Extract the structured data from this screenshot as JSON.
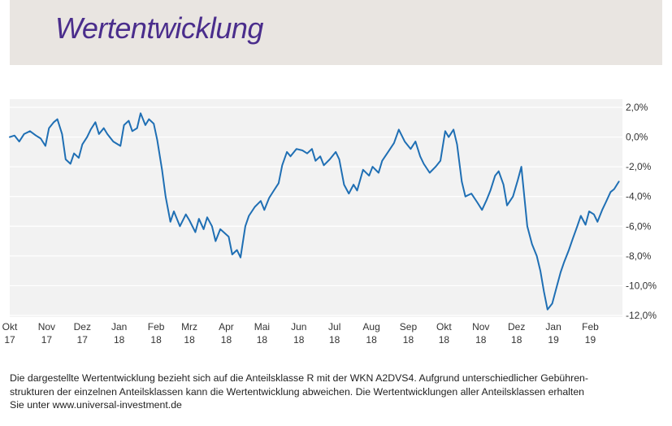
{
  "header": {
    "title": "Wertentwicklung"
  },
  "footnote": {
    "line1": "Die dargestellte Wertentwicklung bezieht sich auf die Anteilsklasse R mit der WKN A2DVS4. Aufgrund unterschiedlicher Gebühren-",
    "line2": "strukturen der einzelnen Anteilsklassen kann die Wertentwicklung abweichen. Die Wertentwicklungen aller Anteilsklassen erhalten",
    "line3": "Sie unter www.universal-investment.de"
  },
  "chart_data": {
    "type": "line",
    "title": "",
    "xlabel": "",
    "ylabel": "",
    "ylim": [
      -12,
      2
    ],
    "y_ticks": [
      "2,0%",
      "0,0%",
      "-2,0%",
      "-4,0%",
      "-6,0%",
      "-8,0%",
      "-10,0%",
      "-12,0%"
    ],
    "y_tick_values": [
      2,
      0,
      -2,
      -4,
      -6,
      -8,
      -10,
      -12
    ],
    "x_ticks": [
      {
        "month": "Okt",
        "year": "17"
      },
      {
        "month": "Nov",
        "year": "17"
      },
      {
        "month": "Dez",
        "year": "17"
      },
      {
        "month": "Jan",
        "year": "18"
      },
      {
        "month": "Feb",
        "year": "18"
      },
      {
        "month": "Mrz",
        "year": "18"
      },
      {
        "month": "Apr",
        "year": "18"
      },
      {
        "month": "Mai",
        "year": "18"
      },
      {
        "month": "Jun",
        "year": "18"
      },
      {
        "month": "Jul",
        "year": "18"
      },
      {
        "month": "Aug",
        "year": "18"
      },
      {
        "month": "Sep",
        "year": "18"
      },
      {
        "month": "Okt",
        "year": "18"
      },
      {
        "month": "Nov",
        "year": "18"
      },
      {
        "month": "Dez",
        "year": "18"
      },
      {
        "month": "Jan",
        "year": "19"
      },
      {
        "month": "Feb",
        "year": "19"
      }
    ],
    "x_range": [
      "2017-10-01",
      "2019-02-28"
    ],
    "grid": true,
    "colors": {
      "line": "#1f6fb4",
      "plot_background": "#f2f2f2",
      "gridline": "#ffffff",
      "title": "#4a2d8c",
      "title_band": "#e9e5e1"
    },
    "series": [
      {
        "values": [
          [
            "2017-10-01",
            0.0
          ],
          [
            "2017-10-05",
            0.1
          ],
          [
            "2017-10-09",
            -0.3
          ],
          [
            "2017-10-13",
            0.2
          ],
          [
            "2017-10-18",
            0.4
          ],
          [
            "2017-10-23",
            0.1
          ],
          [
            "2017-10-27",
            -0.1
          ],
          [
            "2017-10-31",
            -0.6
          ],
          [
            "2017-11-03",
            0.6
          ],
          [
            "2017-11-07",
            1.0
          ],
          [
            "2017-11-10",
            1.2
          ],
          [
            "2017-11-14",
            0.2
          ],
          [
            "2017-11-17",
            -1.5
          ],
          [
            "2017-11-21",
            -1.8
          ],
          [
            "2017-11-24",
            -1.1
          ],
          [
            "2017-11-28",
            -1.4
          ],
          [
            "2017-12-01",
            -0.5
          ],
          [
            "2017-12-05",
            0.0
          ],
          [
            "2017-12-08",
            0.5
          ],
          [
            "2017-12-12",
            1.0
          ],
          [
            "2017-12-15",
            0.2
          ],
          [
            "2017-12-19",
            0.6
          ],
          [
            "2017-12-22",
            0.2
          ],
          [
            "2017-12-27",
            -0.3
          ],
          [
            "2018-01-02",
            -0.6
          ],
          [
            "2018-01-05",
            0.8
          ],
          [
            "2018-01-09",
            1.1
          ],
          [
            "2018-01-12",
            0.4
          ],
          [
            "2018-01-16",
            0.6
          ],
          [
            "2018-01-19",
            1.6
          ],
          [
            "2018-01-23",
            0.8
          ],
          [
            "2018-01-26",
            1.2
          ],
          [
            "2018-01-30",
            0.9
          ],
          [
            "2018-02-02",
            -0.2
          ],
          [
            "2018-02-06",
            -2.2
          ],
          [
            "2018-02-09",
            -4.0
          ],
          [
            "2018-02-13",
            -5.7
          ],
          [
            "2018-02-16",
            -5.0
          ],
          [
            "2018-02-21",
            -6.0
          ],
          [
            "2018-02-26",
            -5.2
          ],
          [
            "2018-03-01",
            -5.6
          ],
          [
            "2018-03-06",
            -6.4
          ],
          [
            "2018-03-09",
            -5.5
          ],
          [
            "2018-03-13",
            -6.2
          ],
          [
            "2018-03-16",
            -5.4
          ],
          [
            "2018-03-20",
            -6.0
          ],
          [
            "2018-03-23",
            -7.0
          ],
          [
            "2018-03-27",
            -6.2
          ],
          [
            "2018-04-03",
            -6.7
          ],
          [
            "2018-04-06",
            -7.9
          ],
          [
            "2018-04-10",
            -7.6
          ],
          [
            "2018-04-13",
            -8.1
          ],
          [
            "2018-04-17",
            -6.0
          ],
          [
            "2018-04-20",
            -5.3
          ],
          [
            "2018-04-25",
            -4.7
          ],
          [
            "2018-04-30",
            -4.3
          ],
          [
            "2018-05-03",
            -4.9
          ],
          [
            "2018-05-07",
            -4.1
          ],
          [
            "2018-05-11",
            -3.6
          ],
          [
            "2018-05-15",
            -3.1
          ],
          [
            "2018-05-18",
            -1.9
          ],
          [
            "2018-05-22",
            -1.0
          ],
          [
            "2018-05-25",
            -1.3
          ],
          [
            "2018-05-30",
            -0.8
          ],
          [
            "2018-06-04",
            -0.9
          ],
          [
            "2018-06-08",
            -1.1
          ],
          [
            "2018-06-12",
            -0.8
          ],
          [
            "2018-06-15",
            -1.6
          ],
          [
            "2018-06-19",
            -1.3
          ],
          [
            "2018-06-22",
            -1.9
          ],
          [
            "2018-06-27",
            -1.5
          ],
          [
            "2018-07-02",
            -1.0
          ],
          [
            "2018-07-05",
            -1.5
          ],
          [
            "2018-07-09",
            -3.2
          ],
          [
            "2018-07-13",
            -3.8
          ],
          [
            "2018-07-17",
            -3.2
          ],
          [
            "2018-07-20",
            -3.6
          ],
          [
            "2018-07-25",
            -2.2
          ],
          [
            "2018-07-30",
            -2.6
          ],
          [
            "2018-08-02",
            -2.0
          ],
          [
            "2018-08-07",
            -2.4
          ],
          [
            "2018-08-10",
            -1.6
          ],
          [
            "2018-08-15",
            -1.0
          ],
          [
            "2018-08-20",
            -0.4
          ],
          [
            "2018-08-24",
            0.5
          ],
          [
            "2018-08-29",
            -0.3
          ],
          [
            "2018-09-03",
            -0.8
          ],
          [
            "2018-09-07",
            -0.3
          ],
          [
            "2018-09-11",
            -1.3
          ],
          [
            "2018-09-14",
            -1.8
          ],
          [
            "2018-09-19",
            -2.4
          ],
          [
            "2018-09-24",
            -2.0
          ],
          [
            "2018-09-28",
            -1.6
          ],
          [
            "2018-10-02",
            0.4
          ],
          [
            "2018-10-05",
            0.0
          ],
          [
            "2018-10-09",
            0.5
          ],
          [
            "2018-10-12",
            -0.5
          ],
          [
            "2018-10-16",
            -3.0
          ],
          [
            "2018-10-19",
            -4.0
          ],
          [
            "2018-10-24",
            -3.8
          ],
          [
            "2018-10-29",
            -4.4
          ],
          [
            "2018-11-02",
            -4.9
          ],
          [
            "2018-11-06",
            -4.2
          ],
          [
            "2018-11-09",
            -3.6
          ],
          [
            "2018-11-13",
            -2.6
          ],
          [
            "2018-11-16",
            -2.3
          ],
          [
            "2018-11-20",
            -3.2
          ],
          [
            "2018-11-23",
            -4.6
          ],
          [
            "2018-11-28",
            -4.0
          ],
          [
            "2018-12-02",
            -2.9
          ],
          [
            "2018-12-05",
            -2.0
          ],
          [
            "2018-12-10",
            -6.0
          ],
          [
            "2018-12-14",
            -7.2
          ],
          [
            "2018-12-18",
            -8.0
          ],
          [
            "2018-12-21",
            -9.0
          ],
          [
            "2018-12-24",
            -10.4
          ],
          [
            "2018-12-27",
            -11.6
          ],
          [
            "2018-12-31",
            -11.2
          ],
          [
            "2019-01-03",
            -10.3
          ],
          [
            "2019-01-07",
            -9.1
          ],
          [
            "2019-01-10",
            -8.4
          ],
          [
            "2019-01-14",
            -7.6
          ],
          [
            "2019-01-17",
            -6.9
          ],
          [
            "2019-01-21",
            -6.0
          ],
          [
            "2019-01-24",
            -5.3
          ],
          [
            "2019-01-28",
            -5.9
          ],
          [
            "2019-01-31",
            -5.0
          ],
          [
            "2019-02-04",
            -5.2
          ],
          [
            "2019-02-07",
            -5.7
          ],
          [
            "2019-02-11",
            -4.9
          ],
          [
            "2019-02-14",
            -4.4
          ],
          [
            "2019-02-18",
            -3.7
          ],
          [
            "2019-02-21",
            -3.5
          ],
          [
            "2019-02-25",
            -3.0
          ]
        ]
      }
    ]
  }
}
